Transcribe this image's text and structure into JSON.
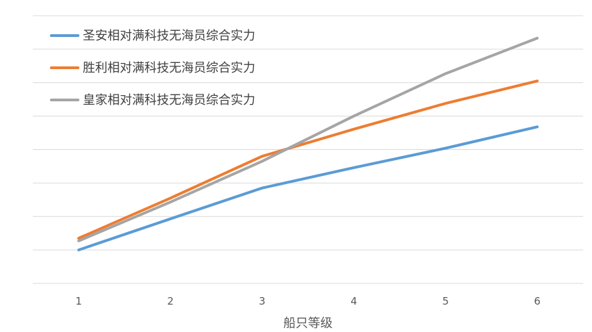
{
  "chart_data": {
    "type": "line",
    "title": "",
    "xlabel": "船只等级",
    "ylabel": "",
    "categories": [
      "1",
      "2",
      "3",
      "4",
      "5",
      "6"
    ],
    "ylim": [
      0,
      8
    ],
    "grid": true,
    "legend_position": "top-left",
    "series": [
      {
        "name": "圣安相对满科技无海员综合实力",
        "color": "#5b9bd5",
        "values": [
          1.0,
          1.93,
          2.85,
          3.46,
          4.04,
          4.68
        ]
      },
      {
        "name": "胜利相对满科技无海员综合实力",
        "color": "#ed7d31",
        "values": [
          1.35,
          2.55,
          3.8,
          4.61,
          5.38,
          6.05
        ]
      },
      {
        "name": "皇家相对满科技无海员综合实力",
        "color": "#a5a5a5",
        "values": [
          1.27,
          2.43,
          3.65,
          5.0,
          6.27,
          7.33
        ]
      }
    ]
  }
}
